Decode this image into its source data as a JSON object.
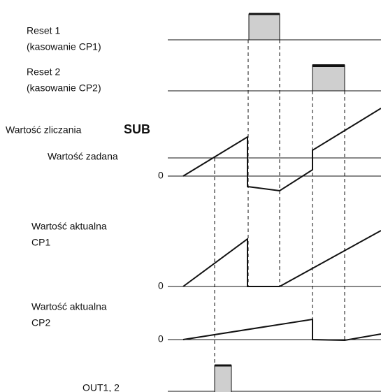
{
  "labels": {
    "reset1": "Reset 1",
    "reset1_note": "(kasowanie CP1)",
    "reset2": "Reset 2",
    "reset2_note": "(kasowanie CP2)",
    "count_value": "Wartość zliczania",
    "mode": "SUB",
    "set_value": "Wartość zadana",
    "zero_count": "0",
    "cp1_title": "Wartość aktualna",
    "cp1": "CP1",
    "zero_cp1": "0",
    "cp2_title": "Wartość aktualna",
    "cp2": "CP2",
    "zero_cp2": "0",
    "out": "OUT1, 2"
  }
}
